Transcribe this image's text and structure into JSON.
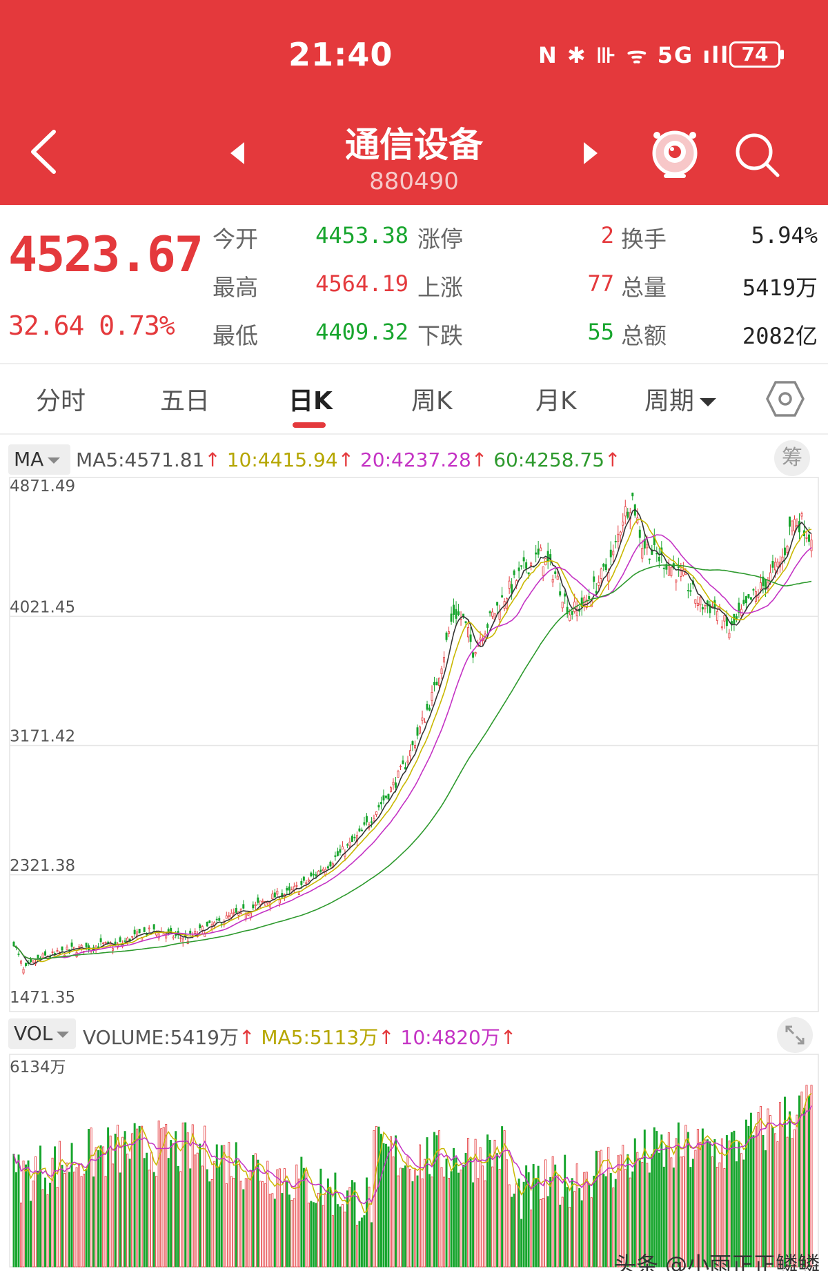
{
  "status_bar": {
    "time": "21:40",
    "icons_text": "N ✱ ⊪ ᯤ 5G ıll",
    "battery": "74"
  },
  "header": {
    "title": "通信设备",
    "code": "880490",
    "icons": [
      "back-arrow-icon",
      "prev-triangle-icon",
      "next-triangle-icon",
      "mascot-icon",
      "search-icon"
    ]
  },
  "quote": {
    "price": "4523.67",
    "change": "32.64",
    "change_pct": "0.73%",
    "open_label": "今开",
    "open": "4453.38",
    "high_label": "最高",
    "high": "4564.19",
    "low_label": "最低",
    "low": "4409.32",
    "limit_up_label": "涨停",
    "limit_up": "2",
    "rise_label": "上涨",
    "rise": "77",
    "fall_label": "下跌",
    "fall": "55",
    "turnover_label": "换手",
    "turnover": "5.94%",
    "volume_label": "总量",
    "volume": "5419万",
    "amount_label": "总额",
    "amount": "2082亿"
  },
  "tabs": [
    {
      "label": "分时",
      "active": false
    },
    {
      "label": "五日",
      "active": false
    },
    {
      "label": "日K",
      "active": true
    },
    {
      "label": "周K",
      "active": false
    },
    {
      "label": "月K",
      "active": false
    },
    {
      "label": "周期",
      "active": false
    }
  ],
  "ma_legend": {
    "selector": "MA",
    "ma5": "MA5:4571.81",
    "ma10": "10:4415.94",
    "ma20": "20:4237.28",
    "ma60": "60:4258.75",
    "chip_label": "筹"
  },
  "vol_legend": {
    "selector": "VOL",
    "volume": "VOLUME:5419万",
    "ma5": "MA5:5113万",
    "ma10": "10:4820万"
  },
  "colors": {
    "up": "#e4393c",
    "down": "#17a52d",
    "ma5": "#333333",
    "ma10": "#c9b800",
    "ma20": "#c433c4",
    "ma60": "#2e9a2e",
    "header_bg": "#e4393c"
  },
  "watermark": "头条 @小雨正正鳞鳞",
  "chart_data": [
    {
      "type": "candlestick",
      "y_tick_labels": [
        "4871.49",
        "4021.45",
        "3171.42",
        "2321.38",
        "1471.35"
      ],
      "ylim": [
        1471.35,
        4871.49
      ],
      "grid": true,
      "series": [
        {
          "name": "MA5",
          "values_last": 4571.81
        },
        {
          "name": "MA10",
          "values_last": 4415.94
        },
        {
          "name": "MA20",
          "values_last": 4237.28
        },
        {
          "name": "MA60",
          "values_last": 4258.75
        }
      ],
      "close_path": [
        [
          0,
          1880
        ],
        [
          4,
          1690
        ],
        [
          8,
          1740
        ],
        [
          12,
          1780
        ],
        [
          18,
          1800
        ],
        [
          24,
          1830
        ],
        [
          30,
          1840
        ],
        [
          36,
          1860
        ],
        [
          42,
          1850
        ],
        [
          48,
          1900
        ],
        [
          54,
          1940
        ],
        [
          60,
          1950
        ],
        [
          66,
          1920
        ],
        [
          72,
          1900
        ],
        [
          78,
          1960
        ],
        [
          84,
          2000
        ],
        [
          90,
          2050
        ],
        [
          96,
          2080
        ],
        [
          102,
          2130
        ],
        [
          108,
          2180
        ],
        [
          114,
          2200
        ],
        [
          120,
          2260
        ],
        [
          126,
          2340
        ],
        [
          132,
          2420
        ],
        [
          138,
          2500
        ],
        [
          144,
          2600
        ],
        [
          150,
          2750
        ],
        [
          156,
          2880
        ],
        [
          162,
          3050
        ],
        [
          168,
          3280
        ],
        [
          174,
          3530
        ],
        [
          178,
          3780
        ],
        [
          182,
          4050
        ],
        [
          186,
          4000
        ],
        [
          190,
          3800
        ],
        [
          194,
          3920
        ],
        [
          200,
          4080
        ],
        [
          206,
          4220
        ],
        [
          212,
          4350
        ],
        [
          218,
          4420
        ],
        [
          224,
          4300
        ],
        [
          230,
          4050
        ],
        [
          236,
          4100
        ],
        [
          242,
          4250
        ],
        [
          248,
          4420
        ],
        [
          252,
          4680
        ],
        [
          256,
          4800
        ],
        [
          260,
          4500
        ],
        [
          266,
          4420
        ],
        [
          272,
          4350
        ],
        [
          278,
          4250
        ],
        [
          284,
          4100
        ],
        [
          290,
          4080
        ],
        [
          296,
          3920
        ],
        [
          300,
          4010
        ],
        [
          306,
          4150
        ],
        [
          312,
          4260
        ],
        [
          318,
          4400
        ],
        [
          322,
          4650
        ],
        [
          326,
          4640
        ],
        [
          330,
          4523.67
        ]
      ],
      "last_candle": {
        "open": 4453.38,
        "high": 4564.19,
        "low": 4409.32,
        "close": 4523.67
      }
    },
    {
      "type": "bar",
      "y_tick_labels": [
        "6134万"
      ],
      "ylim": [
        0,
        6134
      ],
      "series": [
        {
          "name": "VOLUME",
          "values_last": 5419
        },
        {
          "name": "MA5",
          "values_last": 5113
        },
        {
          "name": "MA10",
          "values_last": 4820
        }
      ]
    }
  ]
}
